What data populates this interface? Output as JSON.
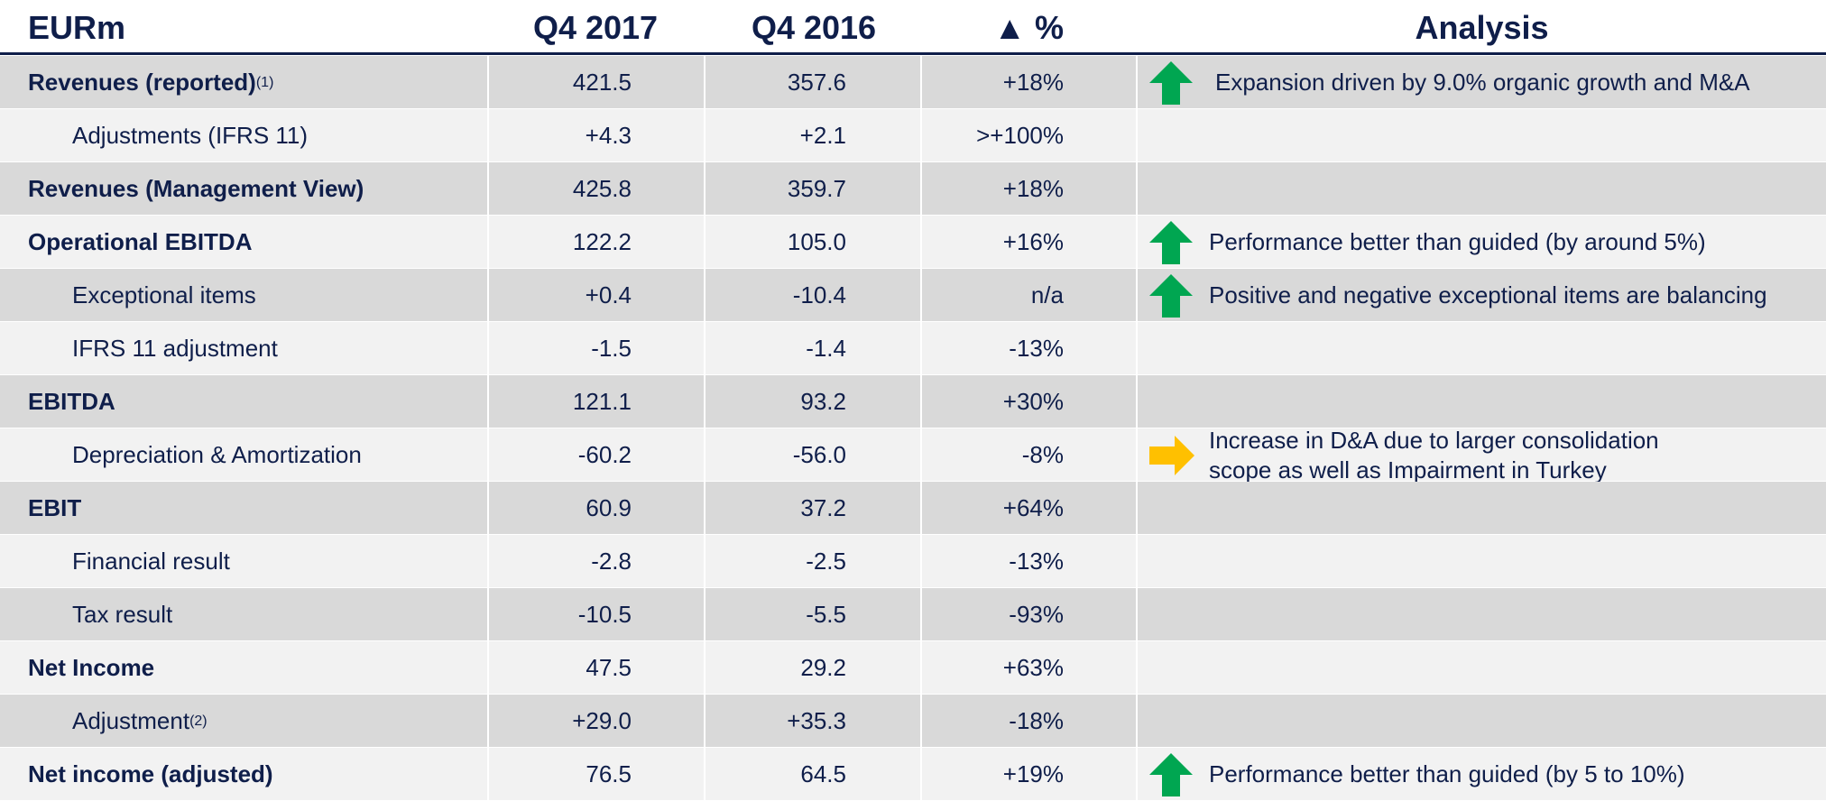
{
  "table": {
    "header": [
      "EURm",
      "Q4 2017",
      "Q4 2016",
      "▲ %",
      "Analysis"
    ],
    "rows": [
      {
        "label": "Revenues (reported)",
        "note": "(1)",
        "level": 0,
        "values": [
          "421.5",
          "357.6",
          "+18%"
        ],
        "analysis": [
          "Expansion driven by 9.0% organic growth and M&A"
        ],
        "icon": "up"
      },
      {
        "label": "Adjustments (IFRS 11)",
        "level": 1,
        "values": [
          "+4.3",
          "+2.1",
          ">+100%"
        ]
      },
      {
        "label": "Revenues (Management View)",
        "level": 0,
        "values": [
          "425.8",
          "359.7",
          "+18%"
        ]
      },
      {
        "label": "Operational EBITDA",
        "level": 0,
        "values": [
          "122.2",
          "105.0",
          "+16%"
        ],
        "analysis": [
          "Performance better than guided (by around 5%)"
        ],
        "icon": "up"
      },
      {
        "label": "Exceptional items",
        "level": 1,
        "values": [
          "+0.4",
          "-10.4",
          "n/a"
        ],
        "analysis": [
          "Positive and negative exceptional items are balancing"
        ],
        "icon": "up"
      },
      {
        "label": "IFRS 11 adjustment",
        "level": 1,
        "values": [
          "-1.5",
          "-1.4",
          "-13%"
        ]
      },
      {
        "label": "EBITDA",
        "level": 0,
        "values": [
          "121.1",
          "93.2",
          "+30%"
        ]
      },
      {
        "label": "Depreciation & Amortization",
        "level": 1,
        "values": [
          "-60.2",
          "-56.0",
          "-8%"
        ],
        "analysis": [
          "Increase in D&A due to larger consolidation",
          "scope as well as Impairment in Turkey"
        ],
        "icon": "right"
      },
      {
        "label": "EBIT",
        "level": 0,
        "values": [
          "60.9",
          "37.2",
          "+64%"
        ]
      },
      {
        "label": "Financial result",
        "level": 1,
        "values": [
          "-2.8",
          "-2.5",
          "-13%"
        ]
      },
      {
        "label": "Tax result",
        "level": 1,
        "values": [
          "-10.5",
          "-5.5",
          "-93%"
        ]
      },
      {
        "label": "Net Income",
        "level": 0,
        "values": [
          "47.5",
          "29.2",
          "+63%"
        ]
      },
      {
        "label": "Adjustment",
        "note": "(2)",
        "level": 1,
        "values": [
          "+29.0",
          "+35.3",
          "-18%"
        ]
      },
      {
        "label": "Net income (adjusted)",
        "level": 0,
        "values": [
          "76.5",
          "64.5",
          "+19%"
        ],
        "analysis": [
          "Performance better than guided (by 5 to 10%)"
        ],
        "icon": "up"
      }
    ]
  }
}
